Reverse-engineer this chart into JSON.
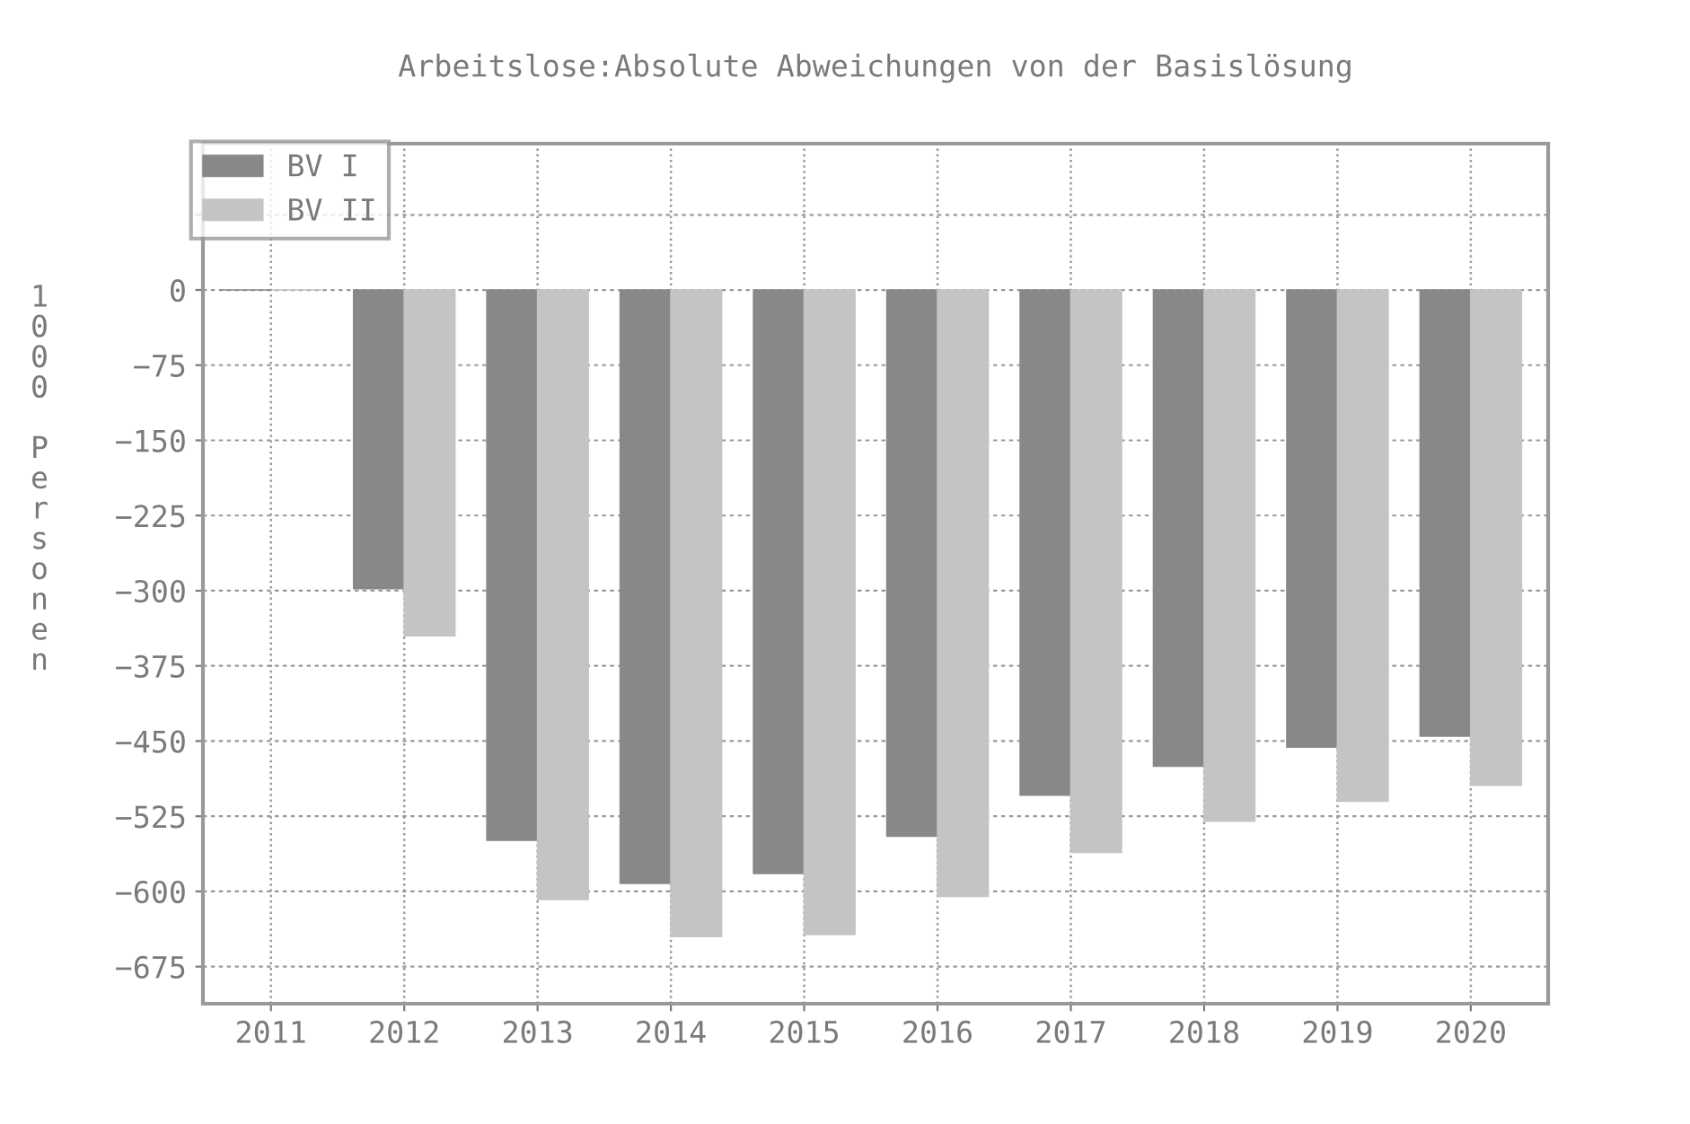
{
  "chart_data": {
    "type": "bar",
    "title": "Arbeitslose:Absolute Abweichungen von der Basislösung",
    "ylabel": "1000 Personen",
    "categories": [
      "2011",
      "2012",
      "2013",
      "2014",
      "2015",
      "2016",
      "2017",
      "2018",
      "2019",
      "2020"
    ],
    "series": [
      {
        "name": "BV I",
        "color": "#888888",
        "values": [
          0,
          -298,
          -549,
          -592,
          -582,
          -545,
          -504,
          -475,
          -456,
          -445
        ]
      },
      {
        "name": "BV II",
        "color": "#c4c4c4",
        "values": [
          0,
          -345,
          -608,
          -645,
          -643,
          -605,
          -561,
          -530,
          -510,
          -494
        ]
      }
    ],
    "ylim": [
      -712,
      146
    ],
    "yticks": [
      {
        "value": 75,
        "label": null
      },
      0,
      -75,
      -150,
      -225,
      -300,
      -375,
      -450,
      -525,
      -600,
      -675
    ],
    "grid": true,
    "legend": "top left"
  }
}
